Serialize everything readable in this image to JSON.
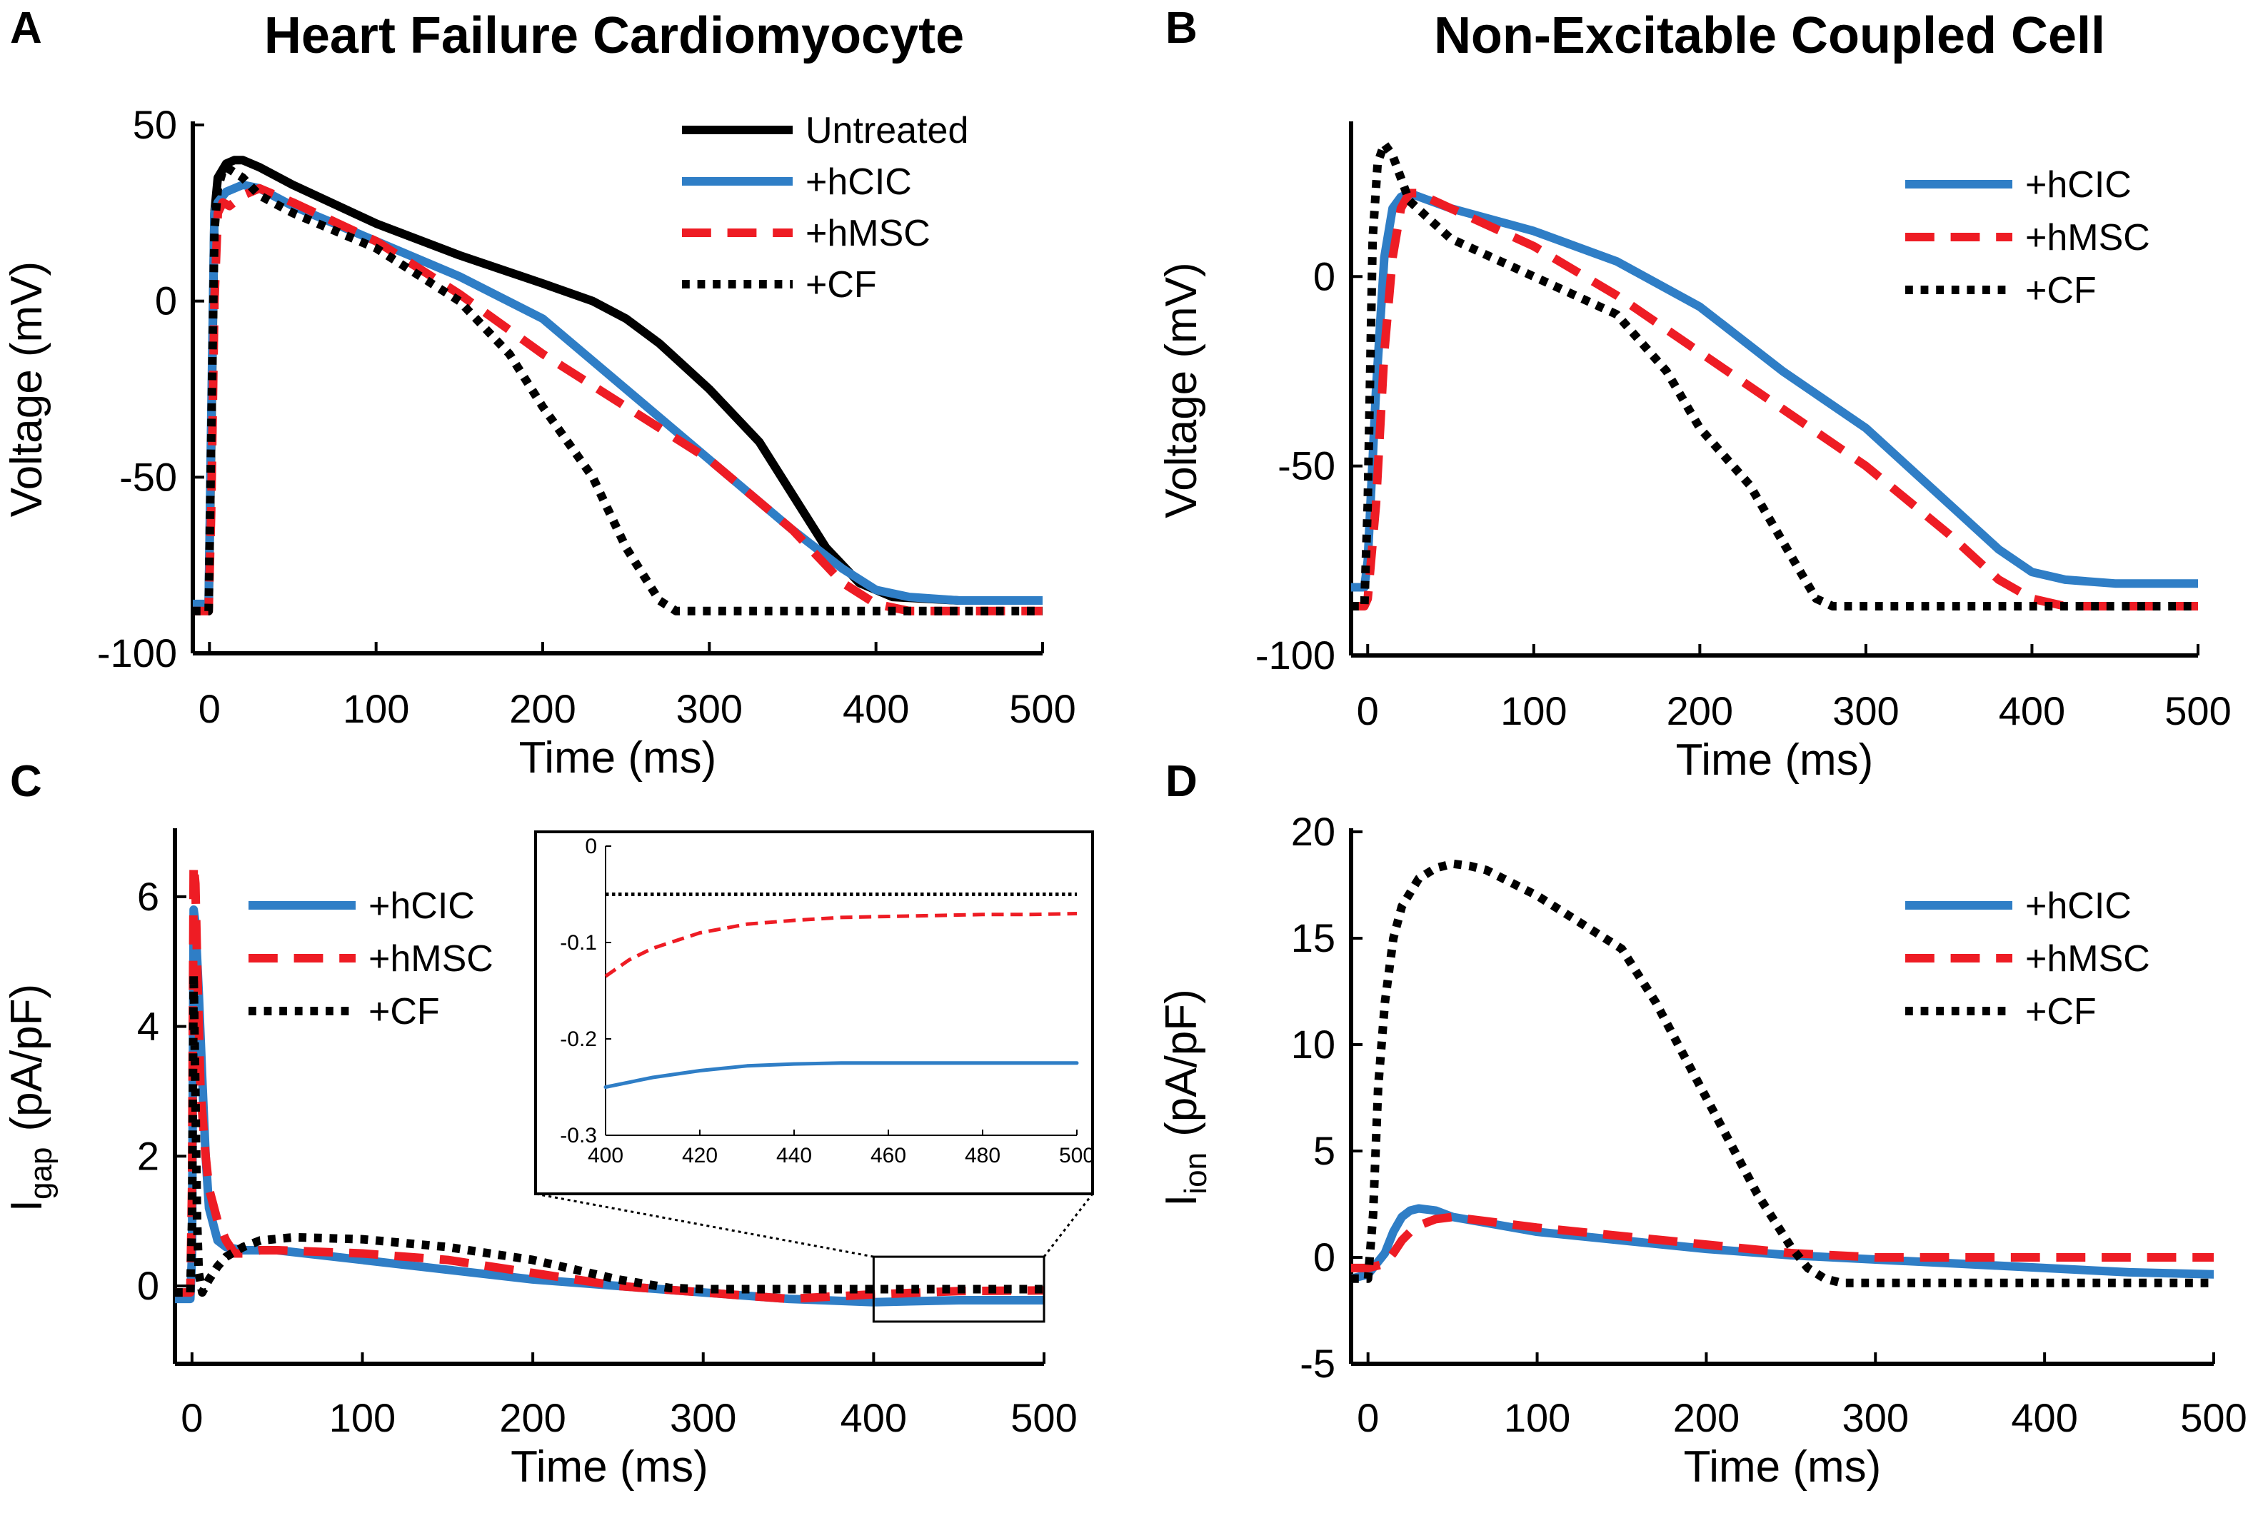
{
  "panels": {
    "A": {
      "letter": "A",
      "title": "Heart Failure Cardiomyocyte"
    },
    "B": {
      "letter": "B",
      "title": "Non-Excitable Coupled Cell"
    },
    "C": {
      "letter": "C",
      "title": ""
    },
    "D": {
      "letter": "D",
      "title": ""
    }
  },
  "colors": {
    "untreated": "#000000",
    "hCIC": "#2f7ec6",
    "hMSC": "#ee1c24",
    "CF": "#000000"
  },
  "chart_data": [
    {
      "panel": "A",
      "type": "line",
      "title": "Heart Failure Cardiomyocyte",
      "xlabel": "Time (ms)",
      "ylabel": "Voltage (mV)",
      "xlim": [
        -10,
        500
      ],
      "ylim": [
        -100,
        50
      ],
      "xticks": [
        0,
        100,
        200,
        300,
        400,
        500
      ],
      "yticks": [
        50,
        0,
        -50,
        -100
      ],
      "legend_position": "top-right",
      "series": [
        {
          "name": "Untreated",
          "style": "solid",
          "color": "#000000",
          "x": [
            -10,
            -0.5,
            1,
            3,
            5,
            10,
            15,
            20,
            30,
            50,
            100,
            150,
            200,
            230,
            250,
            270,
            300,
            330,
            350,
            370,
            390,
            410,
            450,
            500
          ],
          "y": [
            -87,
            -87,
            -40,
            25,
            35,
            39,
            40,
            40,
            38,
            33,
            22,
            13,
            5,
            0,
            -5,
            -12,
            -25,
            -40,
            -55,
            -70,
            -80,
            -84,
            -85,
            -85
          ]
        },
        {
          "name": "+hCIC",
          "style": "solid",
          "color": "#2f7ec6",
          "x": [
            -10,
            -0.5,
            1,
            3,
            5,
            10,
            20,
            30,
            50,
            100,
            150,
            200,
            250,
            300,
            350,
            380,
            400,
            420,
            450,
            500
          ],
          "y": [
            -86,
            -86,
            -35,
            25,
            28,
            31,
            33,
            32,
            27,
            17,
            7,
            -5,
            -25,
            -45,
            -65,
            -76,
            -82,
            -84,
            -85,
            -85
          ]
        },
        {
          "name": "+hMSC",
          "style": "dashed",
          "color": "#ee1c24",
          "x": [
            -10,
            -0.5,
            1,
            3,
            5,
            8,
            12,
            20,
            30,
            50,
            100,
            150,
            200,
            250,
            300,
            350,
            380,
            400,
            420,
            450,
            500
          ],
          "y": [
            -88,
            -88,
            -60,
            0,
            25,
            28,
            27,
            30,
            32,
            28,
            17,
            2,
            -15,
            -30,
            -45,
            -65,
            -80,
            -86,
            -88,
            -88,
            -88
          ]
        },
        {
          "name": "+CF",
          "style": "dotted",
          "color": "#000000",
          "x": [
            -10,
            -0.5,
            1,
            3,
            5,
            8,
            10,
            20,
            30,
            50,
            100,
            150,
            180,
            200,
            230,
            250,
            270,
            280,
            300,
            400,
            500
          ],
          "y": [
            -88,
            -88,
            -40,
            20,
            32,
            37,
            38,
            35,
            30,
            25,
            15,
            0,
            -15,
            -30,
            -50,
            -70,
            -85,
            -88,
            -88,
            -88,
            -88
          ]
        }
      ]
    },
    {
      "panel": "B",
      "type": "line",
      "title": "Non-Excitable Coupled Cell",
      "xlabel": "Time (ms)",
      "ylabel": "Voltage (mV)",
      "xlim": [
        -10,
        500
      ],
      "ylim": [
        -100,
        40
      ],
      "xticks": [
        0,
        100,
        200,
        300,
        400,
        500
      ],
      "yticks": [
        0,
        -50,
        -100
      ],
      "legend_position": "top-right",
      "series": [
        {
          "name": "+hCIC",
          "style": "solid",
          "color": "#2f7ec6",
          "x": [
            -10,
            -2,
            0,
            5,
            10,
            15,
            20,
            25,
            50,
            100,
            150,
            200,
            250,
            300,
            350,
            380,
            400,
            420,
            450,
            500
          ],
          "y": [
            -82,
            -82,
            -75,
            -30,
            5,
            18,
            21,
            22,
            18,
            12,
            4,
            -8,
            -25,
            -40,
            -60,
            -72,
            -78,
            -80,
            -81,
            -81
          ]
        },
        {
          "name": "+hMSC",
          "style": "dashed",
          "color": "#ee1c24",
          "x": [
            -10,
            -2,
            0,
            5,
            10,
            15,
            20,
            25,
            30,
            50,
            100,
            150,
            200,
            250,
            300,
            350,
            380,
            400,
            420,
            450,
            500
          ],
          "y": [
            -87,
            -87,
            -85,
            -60,
            -20,
            5,
            18,
            22,
            22,
            18,
            8,
            -5,
            -20,
            -35,
            -50,
            -68,
            -80,
            -85,
            -87,
            -87,
            -87
          ]
        },
        {
          "name": "+CF",
          "style": "dotted",
          "color": "#000000",
          "x": [
            -10,
            -2,
            0,
            3,
            6,
            10,
            15,
            25,
            50,
            100,
            150,
            180,
            200,
            230,
            250,
            270,
            280,
            300,
            400,
            500
          ],
          "y": [
            -87,
            -87,
            -60,
            10,
            30,
            35,
            32,
            20,
            10,
            0,
            -10,
            -25,
            -40,
            -55,
            -70,
            -85,
            -87,
            -87,
            -87,
            -87
          ]
        }
      ]
    },
    {
      "panel": "C",
      "type": "line",
      "title": "",
      "xlabel": "Time (ms)",
      "ylabel": "I_gap (pA/pF)",
      "ylabel_main": "I",
      "ylabel_sub": "gap",
      "ylabel_units": "(pA/pF)",
      "xlim": [
        -10,
        500
      ],
      "ylim": [
        -1.2,
        7
      ],
      "xticks": [
        0,
        100,
        200,
        300,
        400,
        500
      ],
      "yticks": [
        0,
        2,
        4,
        6
      ],
      "legend_position": "top-left",
      "series": [
        {
          "name": "+hCIC",
          "style": "solid",
          "color": "#2f7ec6",
          "x": [
            -10,
            -1,
            0,
            1,
            2,
            4,
            6,
            8,
            10,
            15,
            20,
            30,
            40,
            50,
            100,
            150,
            200,
            250,
            300,
            350,
            400,
            450,
            500
          ],
          "y": [
            -0.2,
            -0.2,
            0.5,
            5.8,
            5.6,
            4.5,
            3.2,
            2.0,
            1.2,
            0.7,
            0.6,
            0.55,
            0.55,
            0.55,
            0.4,
            0.25,
            0.1,
            0.0,
            -0.1,
            -0.2,
            -0.25,
            -0.22,
            -0.22
          ]
        },
        {
          "name": "+hMSC",
          "style": "dashed",
          "color": "#ee1c24",
          "x": [
            -10,
            -1,
            0,
            1,
            2,
            3,
            5,
            8,
            10,
            15,
            20,
            25,
            30,
            40,
            50,
            100,
            150,
            200,
            250,
            300,
            350,
            400,
            450,
            500
          ],
          "y": [
            -0.1,
            -0.1,
            1.5,
            6.5,
            6.2,
            5.0,
            3.0,
            2.0,
            1.5,
            1.0,
            0.7,
            0.5,
            0.5,
            0.55,
            0.55,
            0.5,
            0.4,
            0.2,
            0.0,
            -0.1,
            -0.2,
            -0.13,
            -0.08,
            -0.07
          ]
        },
        {
          "name": "+CF",
          "style": "dotted",
          "color": "#000000",
          "x": [
            -10,
            -1,
            0,
            1,
            2,
            3,
            4,
            6,
            10,
            15,
            20,
            30,
            40,
            60,
            100,
            150,
            200,
            250,
            280,
            300,
            400,
            500
          ],
          "y": [
            -0.1,
            -0.1,
            1.0,
            4.8,
            3.0,
            1.0,
            0.2,
            -0.1,
            0.1,
            0.3,
            0.45,
            0.6,
            0.7,
            0.75,
            0.72,
            0.6,
            0.4,
            0.1,
            -0.03,
            -0.05,
            -0.05,
            -0.05
          ]
        }
      ],
      "inset": {
        "xlim": [
          400,
          500
        ],
        "ylim": [
          -0.3,
          0
        ],
        "xticks": [
          400,
          420,
          440,
          460,
          480,
          500
        ],
        "yticks": [
          0,
          -0.1,
          -0.2,
          -0.3
        ],
        "ytick_labels": [
          "0",
          "-0.1",
          "-0.2",
          "-0.3"
        ],
        "series": [
          {
            "name": "+hCIC",
            "style": "solid",
            "color": "#2f7ec6",
            "x": [
              400,
              410,
              420,
              430,
              440,
              450,
              460,
              470,
              480,
              490,
              500
            ],
            "y": [
              -0.25,
              -0.24,
              -0.233,
              -0.228,
              -0.226,
              -0.225,
              -0.225,
              -0.225,
              -0.225,
              -0.225,
              -0.225
            ]
          },
          {
            "name": "+hMSC",
            "style": "dashed",
            "color": "#ee1c24",
            "x": [
              400,
              405,
              410,
              420,
              430,
              440,
              450,
              460,
              470,
              480,
              490,
              500
            ],
            "y": [
              -0.135,
              -0.118,
              -0.106,
              -0.09,
              -0.081,
              -0.077,
              -0.074,
              -0.073,
              -0.072,
              -0.071,
              -0.071,
              -0.07
            ]
          },
          {
            "name": "+CF",
            "style": "dotted",
            "color": "#000000",
            "x": [
              400,
              500
            ],
            "y": [
              -0.05,
              -0.05
            ]
          }
        ]
      }
    },
    {
      "panel": "D",
      "type": "line",
      "title": "",
      "xlabel": "Time (ms)",
      "ylabel": "I_ion (pA/pF)",
      "ylabel_main": "I",
      "ylabel_sub": "ion",
      "ylabel_units": "(pA/pF)",
      "xlim": [
        -10,
        500
      ],
      "ylim": [
        -5,
        20
      ],
      "xticks": [
        0,
        100,
        200,
        300,
        400,
        500
      ],
      "yticks": [
        20,
        15,
        10,
        5,
        0,
        -5
      ],
      "legend_position": "top-right",
      "series": [
        {
          "name": "+hCIC",
          "style": "solid",
          "color": "#2f7ec6",
          "x": [
            -10,
            0,
            10,
            15,
            20,
            25,
            30,
            40,
            50,
            100,
            150,
            200,
            250,
            300,
            350,
            400,
            450,
            500
          ],
          "y": [
            -1.0,
            -0.8,
            0.2,
            1.2,
            1.9,
            2.2,
            2.3,
            2.2,
            1.9,
            1.2,
            0.8,
            0.4,
            0.1,
            -0.1,
            -0.3,
            -0.5,
            -0.7,
            -0.8
          ]
        },
        {
          "name": "+hMSC",
          "style": "dashed",
          "color": "#ee1c24",
          "x": [
            -10,
            0,
            10,
            15,
            20,
            25,
            30,
            40,
            50,
            60,
            100,
            150,
            200,
            250,
            300,
            350,
            400,
            450,
            500
          ],
          "y": [
            -0.5,
            -0.5,
            -0.3,
            0.2,
            0.8,
            1.2,
            1.5,
            1.8,
            1.9,
            1.8,
            1.4,
            1.0,
            0.6,
            0.2,
            0.0,
            0.0,
            0.0,
            0.0,
            0.0
          ]
        },
        {
          "name": "+CF",
          "style": "dotted",
          "color": "#000000",
          "x": [
            -10,
            0,
            3,
            6,
            10,
            15,
            20,
            30,
            40,
            50,
            60,
            70,
            80,
            100,
            120,
            150,
            170,
            190,
            210,
            230,
            250,
            260,
            270,
            280,
            300,
            400,
            500
          ],
          "y": [
            -1.0,
            -1.0,
            2.0,
            8.0,
            12.0,
            15.0,
            16.5,
            17.8,
            18.3,
            18.5,
            18.4,
            18.2,
            17.8,
            17.0,
            16.0,
            14.5,
            12.0,
            9.0,
            6.0,
            3.0,
            0.5,
            -0.5,
            -1.0,
            -1.2,
            -1.2,
            -1.2,
            -1.2
          ]
        }
      ]
    }
  ]
}
